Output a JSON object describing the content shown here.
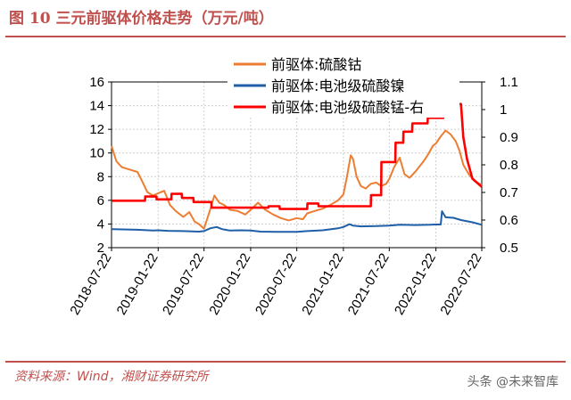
{
  "title": "图 10 三元前驱体价格走势（万元/吨）",
  "source": "资料来源：Wind，湘财证券研究所",
  "watermark": "头条 @未来智库",
  "chart_data": {
    "type": "line",
    "left_axis": {
      "ylim": [
        2,
        16
      ],
      "ticks": [
        2,
        4,
        6,
        8,
        10,
        12,
        14,
        16
      ]
    },
    "right_axis": {
      "ylim": [
        0.5,
        1.1
      ],
      "ticks": [
        0.5,
        0.6,
        0.7,
        0.8,
        0.9,
        1,
        1.1
      ]
    },
    "x_ticks": [
      "2018-07-22",
      "2019-01-22",
      "2019-07-22",
      "2020-01-22",
      "2020-07-22",
      "2021-01-22",
      "2021-07-22",
      "2022-01-22",
      "2022-07-22"
    ],
    "grid": true,
    "legend_position": "top-right",
    "series": [
      {
        "name": "前驱体:硫酸钴",
        "axis": "left",
        "color": "#ed7d31",
        "points": [
          [
            "2018-07-22",
            10.6
          ],
          [
            "2018-08-10",
            9.3
          ],
          [
            "2018-09-01",
            8.8
          ],
          [
            "2018-10-01",
            8.6
          ],
          [
            "2018-11-01",
            8.4
          ],
          [
            "2018-11-20",
            7.6
          ],
          [
            "2018-12-10",
            6.7
          ],
          [
            "2019-01-01",
            6.4
          ],
          [
            "2019-01-22",
            6.6
          ],
          [
            "2019-02-15",
            6.8
          ],
          [
            "2019-03-10",
            5.6
          ],
          [
            "2019-04-01",
            5.1
          ],
          [
            "2019-05-01",
            4.6
          ],
          [
            "2019-05-25",
            5.0
          ],
          [
            "2019-06-15",
            4.2
          ],
          [
            "2019-07-01",
            4.0
          ],
          [
            "2019-07-22",
            3.6
          ],
          [
            "2019-08-15",
            5.2
          ],
          [
            "2019-09-01",
            6.4
          ],
          [
            "2019-09-20",
            5.8
          ],
          [
            "2019-10-10",
            5.6
          ],
          [
            "2019-11-01",
            5.2
          ],
          [
            "2019-12-01",
            5.1
          ],
          [
            "2020-01-01",
            4.8
          ],
          [
            "2020-01-22",
            5.2
          ],
          [
            "2020-02-20",
            5.8
          ],
          [
            "2020-03-20",
            5.2
          ],
          [
            "2020-04-20",
            4.8
          ],
          [
            "2020-05-20",
            4.5
          ],
          [
            "2020-06-20",
            4.3
          ],
          [
            "2020-07-22",
            4.5
          ],
          [
            "2020-08-15",
            4.4
          ],
          [
            "2020-09-01",
            4.9
          ],
          [
            "2020-10-01",
            5.1
          ],
          [
            "2020-11-01",
            5.3
          ],
          [
            "2020-12-01",
            5.6
          ],
          [
            "2021-01-01",
            6.0
          ],
          [
            "2021-01-22",
            6.5
          ],
          [
            "2021-02-05",
            8.0
          ],
          [
            "2021-02-20",
            9.8
          ],
          [
            "2021-03-01",
            9.5
          ],
          [
            "2021-03-15",
            8.0
          ],
          [
            "2021-04-01",
            7.2
          ],
          [
            "2021-04-20",
            7.0
          ],
          [
            "2021-05-10",
            7.4
          ],
          [
            "2021-06-01",
            7.5
          ],
          [
            "2021-06-20",
            7.2
          ],
          [
            "2021-07-10",
            7.4
          ],
          [
            "2021-07-22",
            7.8
          ],
          [
            "2021-08-10",
            8.8
          ],
          [
            "2021-09-01",
            9.6
          ],
          [
            "2021-09-20",
            8.2
          ],
          [
            "2021-10-10",
            7.9
          ],
          [
            "2021-11-01",
            8.4
          ],
          [
            "2021-12-01",
            9.2
          ],
          [
            "2021-12-20",
            9.8
          ],
          [
            "2022-01-10",
            10.6
          ],
          [
            "2022-01-22",
            10.8
          ],
          [
            "2022-02-10",
            11.4
          ],
          [
            "2022-03-01",
            11.9
          ],
          [
            "2022-03-20",
            11.6
          ],
          [
            "2022-04-10",
            11.0
          ],
          [
            "2022-04-25",
            10.2
          ],
          [
            "2022-05-10",
            9.0
          ],
          [
            "2022-06-01",
            8.2
          ],
          [
            "2022-06-25",
            7.6
          ],
          [
            "2022-07-22",
            7.3
          ]
        ]
      },
      {
        "name": "前驱体:电池级硫酸镍",
        "axis": "right",
        "color": "#1f5fa8",
        "points": [
          [
            "2018-07-22",
            0.567
          ],
          [
            "2018-09-01",
            0.566
          ],
          [
            "2018-11-01",
            0.565
          ],
          [
            "2019-01-01",
            0.562
          ],
          [
            "2019-01-22",
            0.563
          ],
          [
            "2019-03-01",
            0.561
          ],
          [
            "2019-05-01",
            0.56
          ],
          [
            "2019-07-01",
            0.558
          ],
          [
            "2019-07-22",
            0.56
          ],
          [
            "2019-08-15",
            0.57
          ],
          [
            "2019-09-10",
            0.575
          ],
          [
            "2019-10-01",
            0.567
          ],
          [
            "2019-11-01",
            0.562
          ],
          [
            "2019-12-15",
            0.563
          ],
          [
            "2020-01-22",
            0.562
          ],
          [
            "2020-03-01",
            0.558
          ],
          [
            "2020-05-01",
            0.557
          ],
          [
            "2020-07-22",
            0.557
          ],
          [
            "2020-09-01",
            0.56
          ],
          [
            "2020-11-01",
            0.563
          ],
          [
            "2021-01-01",
            0.57
          ],
          [
            "2021-01-22",
            0.575
          ],
          [
            "2021-02-15",
            0.585
          ],
          [
            "2021-03-01",
            0.58
          ],
          [
            "2021-04-01",
            0.577
          ],
          [
            "2021-06-01",
            0.578
          ],
          [
            "2021-07-22",
            0.58
          ],
          [
            "2021-09-01",
            0.583
          ],
          [
            "2021-11-01",
            0.582
          ],
          [
            "2022-01-01",
            0.583
          ],
          [
            "2022-01-22",
            0.584
          ],
          [
            "2022-02-10",
            0.584
          ],
          [
            "2022-02-15",
            0.632
          ],
          [
            "2022-03-01",
            0.61
          ],
          [
            "2022-04-01",
            0.608
          ],
          [
            "2022-05-01",
            0.6
          ],
          [
            "2022-06-15",
            0.592
          ],
          [
            "2022-07-22",
            0.583
          ]
        ]
      },
      {
        "name": "前驱体:电池级硫酸锰-右",
        "axis": "right",
        "color": "#ff0000",
        "points": [
          [
            "2018-07-22",
            0.67
          ],
          [
            "2018-12-01",
            0.67
          ],
          [
            "2018-12-02",
            0.685
          ],
          [
            "2019-01-15",
            0.685
          ],
          [
            "2019-01-16",
            0.675
          ],
          [
            "2019-03-15",
            0.675
          ],
          [
            "2019-03-16",
            0.695
          ],
          [
            "2019-04-25",
            0.695
          ],
          [
            "2019-04-26",
            0.68
          ],
          [
            "2019-06-10",
            0.68
          ],
          [
            "2019-06-11",
            0.665
          ],
          [
            "2019-08-20",
            0.665
          ],
          [
            "2019-08-21",
            0.645
          ],
          [
            "2020-04-01",
            0.645
          ],
          [
            "2020-04-02",
            0.65
          ],
          [
            "2020-05-15",
            0.65
          ],
          [
            "2020-05-16",
            0.64
          ],
          [
            "2020-09-01",
            0.64
          ],
          [
            "2020-09-02",
            0.66
          ],
          [
            "2020-10-15",
            0.66
          ],
          [
            "2020-10-16",
            0.65
          ],
          [
            "2021-05-10",
            0.65
          ],
          [
            "2021-05-11",
            0.69
          ],
          [
            "2021-06-20",
            0.69
          ],
          [
            "2021-06-21",
            0.81
          ],
          [
            "2021-08-15",
            0.81
          ],
          [
            "2021-08-16",
            0.88
          ],
          [
            "2021-09-15",
            0.88
          ],
          [
            "2021-09-16",
            0.92
          ],
          [
            "2021-10-20",
            0.92
          ],
          [
            "2021-10-21",
            0.95
          ],
          [
            "2021-12-20",
            0.95
          ],
          [
            "2021-12-21",
            0.97
          ],
          [
            "2022-02-20",
            0.97
          ],
          [
            "2022-02-21",
            1.02
          ],
          [
            "2022-05-01",
            1.02
          ],
          [
            "2022-05-10",
            0.9
          ],
          [
            "2022-05-25",
            0.82
          ],
          [
            "2022-06-15",
            0.75
          ],
          [
            "2022-07-22",
            0.72
          ]
        ]
      }
    ]
  }
}
